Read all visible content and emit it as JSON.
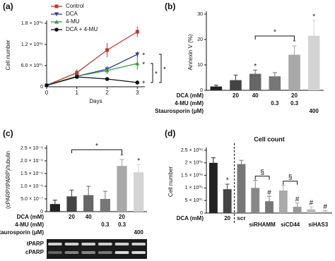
{
  "chart_data": [
    {
      "type": "line",
      "panel": "(a)",
      "ylabel": "Cell number",
      "xlabel": "Days",
      "x": [
        0,
        1,
        2,
        3
      ],
      "xlim": [
        0,
        3.25
      ],
      "xticks": [
        0,
        1,
        2,
        3
      ],
      "ylim": [
        0,
        1800000
      ],
      "yticks": [
        0,
        {
          "value": 600000,
          "label": "6.0 × 10⁰⁵"
        },
        {
          "value": 1200000,
          "label": "1.2 × 10⁰⁶"
        },
        {
          "value": 1800000,
          "label": "1.8 × 10⁰⁶"
        }
      ],
      "legend": "upper left",
      "series": [
        {
          "name": "Control",
          "color": "#c0392b",
          "marker": "square",
          "values": [
            40000,
            400000,
            1040000,
            1560000
          ],
          "errors": [
            20000,
            100000,
            200000,
            150000
          ],
          "end_label": null
        },
        {
          "name": "DCA",
          "color": "#2c3e9e",
          "marker": "triangle-down",
          "values": [
            40000,
            300000,
            500000,
            920000
          ],
          "errors": [
            20000,
            50000,
            80000,
            80000
          ],
          "end_label": "*"
        },
        {
          "name": "4-MU",
          "color": "#3a9a3a",
          "marker": "triangle-up",
          "values": [
            40000,
            300000,
            460000,
            660000
          ],
          "errors": [
            20000,
            50000,
            100000,
            180000
          ],
          "end_label": "*"
        },
        {
          "name": "DCA + 4-MU",
          "color": "#111111",
          "marker": "circle",
          "values": [
            40000,
            280000,
            220000,
            120000
          ],
          "errors": [
            20000,
            40000,
            30000,
            60000
          ],
          "end_label": "*"
        }
      ],
      "brackets": [
        "*",
        "*"
      ]
    },
    {
      "type": "bar",
      "panel": "(b)",
      "ylabel": "Annexin V (%)",
      "ylim": [
        0,
        30
      ],
      "yticks": [
        0,
        10,
        20,
        30
      ],
      "values": [
        1.5,
        4,
        6.5,
        5.5,
        14,
        21.5
      ],
      "errors": [
        0.5,
        2,
        1.5,
        1.5,
        3.5,
        6
      ],
      "colors": [
        "#222222",
        "#444444",
        "#666666",
        "#777777",
        "#a8a8a8",
        "#d4d4d4"
      ],
      "value_marks": [
        null,
        null,
        "*",
        null,
        "*",
        "*"
      ],
      "brackets": [
        "*"
      ],
      "treatments": [
        {
          "label": "DCA (mM)",
          "values": [
            null,
            "20",
            "40",
            null,
            "20",
            null
          ]
        },
        {
          "label": "4-MU (mM)",
          "values": [
            null,
            null,
            null,
            "0.3",
            "0.3",
            null
          ]
        },
        {
          "label": "Staurosporin (μM)",
          "values": [
            null,
            null,
            null,
            null,
            null,
            "400"
          ]
        }
      ]
    },
    {
      "type": "bar",
      "panel": "(c)",
      "ylabel": "(cPARP/tPARP)/tubulin",
      "ylim": [
        0,
        2.5e-06
      ],
      "yticks": [
        0,
        {
          "value": 5e-07,
          "label": "5.0 × 10⁻⁷"
        },
        {
          "value": 1e-06,
          "label": "1.0 × 10⁻⁶"
        },
        {
          "value": 1.5e-06,
          "label": "1.5 × 10⁻⁶"
        },
        {
          "value": 2e-06,
          "label": "2.0 × 10⁻⁶"
        },
        {
          "value": 2.5e-06,
          "label": "2.5 × 10⁻⁶"
        }
      ],
      "values": [
        3e-07,
        6e-07,
        6.5e-07,
        5e-07,
        1.8e-06,
        1.55e-06
      ],
      "errors": [
        1.5e-07,
        2.5e-07,
        3.5e-07,
        3e-07,
        2.5e-07,
        3e-07
      ],
      "colors": [
        "#222222",
        "#444444",
        "#666666",
        "#777777",
        "#a8a8a8",
        "#d4d4d4"
      ],
      "value_marks": [
        null,
        null,
        null,
        null,
        "*",
        "*"
      ],
      "brackets": [
        "*"
      ],
      "treatments": [
        {
          "label": "DCA (mM)",
          "values": [
            null,
            "20",
            "40",
            null,
            "20",
            null
          ]
        },
        {
          "label": "4-MU (mM)",
          "values": [
            null,
            null,
            null,
            "0.3",
            "0.3",
            null
          ]
        },
        {
          "label": "Staurosporin (μM)",
          "values": [
            null,
            null,
            null,
            null,
            null,
            "400"
          ]
        }
      ],
      "blot_labels": [
        "tPARP",
        "cPARP"
      ]
    },
    {
      "type": "bar",
      "panel": "(d)",
      "title": "Cell count",
      "ylabel": "Cell number",
      "ylim": [
        0,
        2500000
      ],
      "yticks": [
        0,
        {
          "value": 500000,
          "label": "5 × 10⁰⁵"
        },
        {
          "value": 1000000,
          "label": "1 × 10⁰⁶"
        },
        {
          "value": 1500000,
          "label": "1.5 × 10⁰⁶"
        },
        {
          "value": 2000000,
          "label": "2 × 10⁰⁶"
        },
        {
          "value": 2500000,
          "label": "2.5 × 10⁰⁶"
        }
      ],
      "values": [
        2000000,
        950000,
        1950000,
        1000000,
        470000,
        900000,
        250000,
        150000,
        50000
      ],
      "errors": [
        200000,
        200000,
        150000,
        300000,
        200000,
        200000,
        150000,
        100000,
        50000
      ],
      "colors": [
        "#222222",
        "#444444",
        "#777777",
        "#888888",
        "#777777",
        "#aaaaaa",
        "#999999",
        "#bbbbbb",
        "#aaaaaa"
      ],
      "value_marks": [
        null,
        "*",
        null,
        null,
        "#",
        null,
        "#",
        "#",
        "#"
      ],
      "brackets": [
        "§",
        "§"
      ],
      "treatments": [
        {
          "label": "DCA (mM)",
          "values": [
            null,
            "20",
            null,
            null,
            null,
            null,
            null,
            null,
            null
          ]
        }
      ],
      "group_labels": [
        "scr",
        "siRHAMM",
        "siCD44",
        "siHAS3"
      ]
    }
  ]
}
